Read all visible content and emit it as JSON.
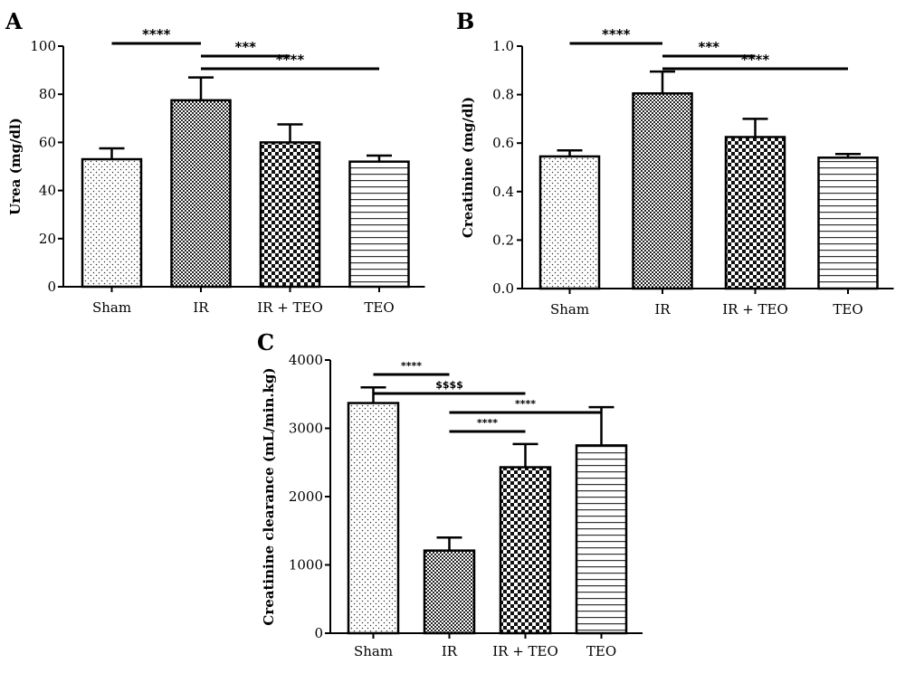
{
  "chart_data": [
    {
      "type": "bar",
      "panel": "A",
      "categories": [
        "Sham",
        "IR",
        "IR + TEO",
        "TEO"
      ],
      "values": [
        53,
        77.5,
        60,
        52
      ],
      "errors": [
        4.5,
        9.5,
        7.5,
        2.5
      ],
      "ylabel": "Urea (mg/dl)",
      "ylim": [
        0,
        100
      ],
      "yticks": [
        "0",
        "20",
        "40",
        "60",
        "80",
        "100"
      ],
      "significance": [
        {
          "from": 0,
          "to": 1,
          "label": "****",
          "level": 0
        },
        {
          "from": 1,
          "to": 2,
          "label": "***",
          "level": 1
        },
        {
          "from": 1,
          "to": 3,
          "label": "****",
          "level": 2
        }
      ]
    },
    {
      "type": "bar",
      "panel": "B",
      "categories": [
        "Sham",
        "IR",
        "IR + TEO",
        "TEO"
      ],
      "values": [
        0.545,
        0.805,
        0.625,
        0.54
      ],
      "errors": [
        0.025,
        0.09,
        0.075,
        0.015
      ],
      "ylabel": "Creatinine (mg/dl)",
      "ylim": [
        0,
        1.0
      ],
      "yticks": [
        "0.0",
        "0.2",
        "0.4",
        "0.6",
        "0.8",
        "1.0"
      ],
      "significance": [
        {
          "from": 0,
          "to": 1,
          "label": "****",
          "level": 0
        },
        {
          "from": 1,
          "to": 2,
          "label": "***",
          "level": 1
        },
        {
          "from": 1,
          "to": 3,
          "label": "****",
          "level": 2
        }
      ]
    },
    {
      "type": "bar",
      "panel": "C",
      "categories": [
        "Sham",
        "IR",
        "IR + TEO",
        "TEO"
      ],
      "values": [
        3370,
        1210,
        2430,
        2750
      ],
      "errors": [
        230,
        190,
        340,
        560
      ],
      "ylabel": "Creatinine clearance (mL/min.kg)",
      "ylim": [
        0,
        4000
      ],
      "yticks": [
        "0",
        "1000",
        "2000",
        "3000",
        "4000"
      ],
      "significance": [
        {
          "from": 0,
          "to": 1,
          "label": "****",
          "level": 3
        },
        {
          "from": 0,
          "to": 2,
          "label": "$$$$",
          "level": 2
        },
        {
          "from": 1,
          "to": 3,
          "label": "****",
          "level": 1
        },
        {
          "from": 1,
          "to": 2,
          "label": "****",
          "level": 0
        }
      ]
    }
  ],
  "colors": {
    "bar_stroke": "#000000",
    "background": "#ffffff"
  },
  "patterns": [
    "dots",
    "fine-checker",
    "coarse-checker",
    "horizontal-lines"
  ]
}
